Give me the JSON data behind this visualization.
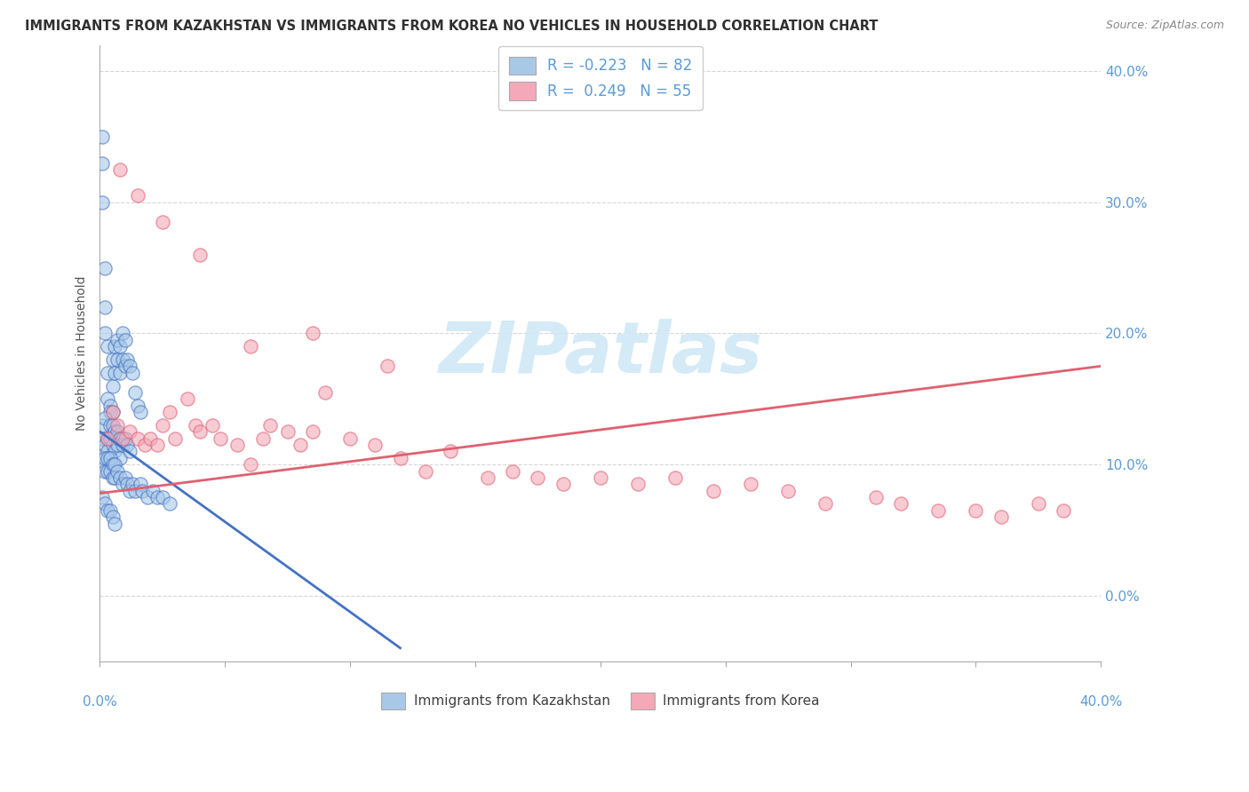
{
  "title": "IMMIGRANTS FROM KAZAKHSTAN VS IMMIGRANTS FROM KOREA NO VEHICLES IN HOUSEHOLD CORRELATION CHART",
  "source": "Source: ZipAtlas.com",
  "ylabel": "No Vehicles in Household",
  "color_kazakhstan": "#a8c8e8",
  "color_korea": "#f4a8b8",
  "line_color_kazakhstan": "#4472c4",
  "line_color_korea": "#e06070",
  "watermark_color": "#d0e8f5",
  "xmin": 0.0,
  "xmax": 0.4,
  "ymin": -0.05,
  "ymax": 0.42,
  "yticks": [
    0.0,
    0.1,
    0.2,
    0.3,
    0.4
  ],
  "xticks": [
    0.0,
    0.05,
    0.1,
    0.15,
    0.2,
    0.25,
    0.3,
    0.35,
    0.4
  ],
  "kaz_line_x0": 0.0,
  "kaz_line_x1": 0.12,
  "kaz_line_y0": 0.125,
  "kaz_line_y1": -0.04,
  "kor_line_x0": 0.0,
  "kor_line_x1": 0.4,
  "kor_line_y0": 0.078,
  "kor_line_y1": 0.175,
  "kaz_x": [
    0.001,
    0.001,
    0.001,
    0.002,
    0.002,
    0.002,
    0.003,
    0.003,
    0.003,
    0.004,
    0.004,
    0.005,
    0.005,
    0.005,
    0.006,
    0.006,
    0.007,
    0.007,
    0.008,
    0.008,
    0.009,
    0.009,
    0.01,
    0.01,
    0.011,
    0.012,
    0.013,
    0.014,
    0.015,
    0.016,
    0.001,
    0.001,
    0.002,
    0.002,
    0.003,
    0.003,
    0.004,
    0.004,
    0.005,
    0.005,
    0.006,
    0.006,
    0.007,
    0.007,
    0.008,
    0.008,
    0.009,
    0.01,
    0.011,
    0.012,
    0.001,
    0.002,
    0.002,
    0.003,
    0.003,
    0.004,
    0.004,
    0.005,
    0.005,
    0.006,
    0.006,
    0.007,
    0.008,
    0.009,
    0.01,
    0.011,
    0.012,
    0.013,
    0.014,
    0.016,
    0.017,
    0.019,
    0.021,
    0.023,
    0.025,
    0.028,
    0.001,
    0.002,
    0.003,
    0.004,
    0.005,
    0.006
  ],
  "kaz_y": [
    0.35,
    0.33,
    0.3,
    0.25,
    0.22,
    0.2,
    0.19,
    0.17,
    0.15,
    0.145,
    0.14,
    0.18,
    0.16,
    0.14,
    0.19,
    0.17,
    0.195,
    0.18,
    0.19,
    0.17,
    0.2,
    0.18,
    0.195,
    0.175,
    0.18,
    0.175,
    0.17,
    0.155,
    0.145,
    0.14,
    0.13,
    0.12,
    0.135,
    0.115,
    0.12,
    0.11,
    0.13,
    0.12,
    0.13,
    0.115,
    0.125,
    0.11,
    0.125,
    0.115,
    0.12,
    0.105,
    0.115,
    0.12,
    0.115,
    0.11,
    0.1,
    0.105,
    0.095,
    0.105,
    0.095,
    0.105,
    0.095,
    0.1,
    0.09,
    0.1,
    0.09,
    0.095,
    0.09,
    0.085,
    0.09,
    0.085,
    0.08,
    0.085,
    0.08,
    0.085,
    0.08,
    0.075,
    0.08,
    0.075,
    0.075,
    0.07,
    0.075,
    0.07,
    0.065,
    0.065,
    0.06,
    0.055
  ],
  "kor_x": [
    0.003,
    0.005,
    0.007,
    0.009,
    0.012,
    0.015,
    0.018,
    0.02,
    0.023,
    0.025,
    0.028,
    0.03,
    0.035,
    0.038,
    0.04,
    0.045,
    0.048,
    0.055,
    0.06,
    0.065,
    0.068,
    0.075,
    0.08,
    0.085,
    0.09,
    0.1,
    0.11,
    0.12,
    0.13,
    0.14,
    0.155,
    0.165,
    0.175,
    0.185,
    0.2,
    0.215,
    0.23,
    0.245,
    0.26,
    0.275,
    0.29,
    0.31,
    0.32,
    0.335,
    0.35,
    0.36,
    0.375,
    0.385,
    0.008,
    0.015,
    0.025,
    0.04,
    0.06,
    0.085,
    0.115
  ],
  "kor_y": [
    0.12,
    0.14,
    0.13,
    0.12,
    0.125,
    0.12,
    0.115,
    0.12,
    0.115,
    0.13,
    0.14,
    0.12,
    0.15,
    0.13,
    0.125,
    0.13,
    0.12,
    0.115,
    0.1,
    0.12,
    0.13,
    0.125,
    0.115,
    0.125,
    0.155,
    0.12,
    0.115,
    0.105,
    0.095,
    0.11,
    0.09,
    0.095,
    0.09,
    0.085,
    0.09,
    0.085,
    0.09,
    0.08,
    0.085,
    0.08,
    0.07,
    0.075,
    0.07,
    0.065,
    0.065,
    0.06,
    0.07,
    0.065,
    0.325,
    0.305,
    0.285,
    0.26,
    0.19,
    0.2,
    0.175
  ]
}
